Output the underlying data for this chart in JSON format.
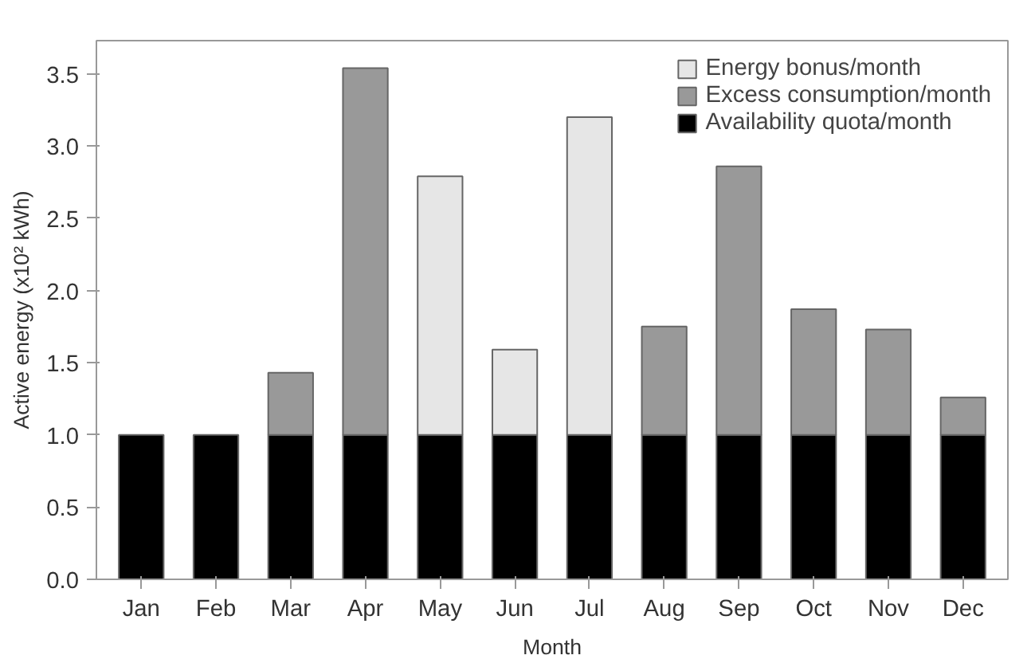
{
  "chart_data": {
    "type": "bar",
    "stacked": true,
    "xlabel": "Month",
    "ylabel": "Active energy (x10² kWh)",
    "categories": [
      "Jan",
      "Feb",
      "Mar",
      "Apr",
      "May",
      "Jun",
      "Jul",
      "Aug",
      "Sep",
      "Oct",
      "Nov",
      "Dec"
    ],
    "series": [
      {
        "name": "Availability quota/month",
        "color": "#000000",
        "values": [
          1,
          1,
          1,
          1,
          1,
          1,
          1,
          1,
          1,
          1,
          1,
          1
        ]
      },
      {
        "name": "Excess consumption/month",
        "color": "#999999",
        "values": [
          0,
          0,
          0.43,
          2.54,
          0,
          0,
          0,
          0.75,
          1.86,
          0.87,
          0.73,
          0.26
        ]
      },
      {
        "name": "Energy bonus/month",
        "color": "#e6e6e6",
        "values": [
          0,
          0,
          0,
          0,
          1.79,
          0.59,
          2.2,
          0,
          0,
          0,
          0,
          0
        ]
      }
    ],
    "ylim": [
      0,
      3.73
    ],
    "yticks": [
      {
        "value": 0,
        "label": "0.0"
      },
      {
        "value": 0.5,
        "label": "0.5"
      },
      {
        "value": 1,
        "label": "1.0"
      },
      {
        "value": 1.5,
        "label": "1.5"
      },
      {
        "value": 2,
        "label": "2.0"
      },
      {
        "value": 2.5,
        "label": "2.5"
      },
      {
        "value": 3,
        "label": "3.0"
      },
      {
        "value": 3.5,
        "label": "3.5"
      }
    ],
    "grid": false,
    "legend": "top right"
  }
}
